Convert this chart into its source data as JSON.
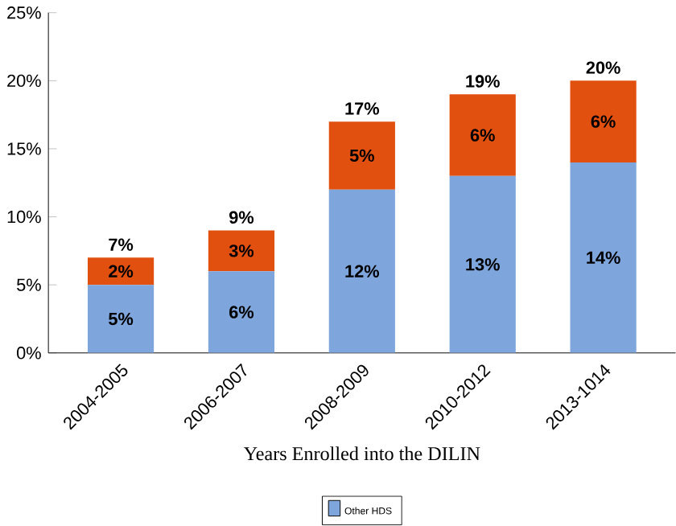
{
  "chart_data": {
    "type": "bar",
    "stacked": true,
    "xlabel": "Years Enrolled into the DILIN",
    "categories": [
      "2004-2005",
      "2006-2007",
      "2008-2009",
      "2010-2012",
      "2013-1014"
    ],
    "series": [
      {
        "name": "Other HDS",
        "color": "#7ea6dc",
        "values": [
          5,
          6,
          12,
          13,
          14
        ],
        "value_labels": [
          "5%",
          "6%",
          "12%",
          "13%",
          "14%"
        ]
      },
      {
        "color": "#e2500f",
        "values": [
          2,
          3,
          5,
          6,
          6
        ],
        "value_labels": [
          "2%",
          "3%",
          "5%",
          "6%",
          "6%"
        ]
      }
    ],
    "totals": [
      "7%",
      "9%",
      "17%",
      "19%",
      "20%"
    ],
    "ylim": [
      0,
      25
    ],
    "yticks": [
      {
        "value": 0,
        "label": "0%"
      },
      {
        "value": 5,
        "label": "5%"
      },
      {
        "value": 10,
        "label": "10%"
      },
      {
        "value": 15,
        "label": "15%"
      },
      {
        "value": 20,
        "label": "20%"
      },
      {
        "value": 25,
        "label": "25%"
      }
    ],
    "legend": "bottom"
  }
}
